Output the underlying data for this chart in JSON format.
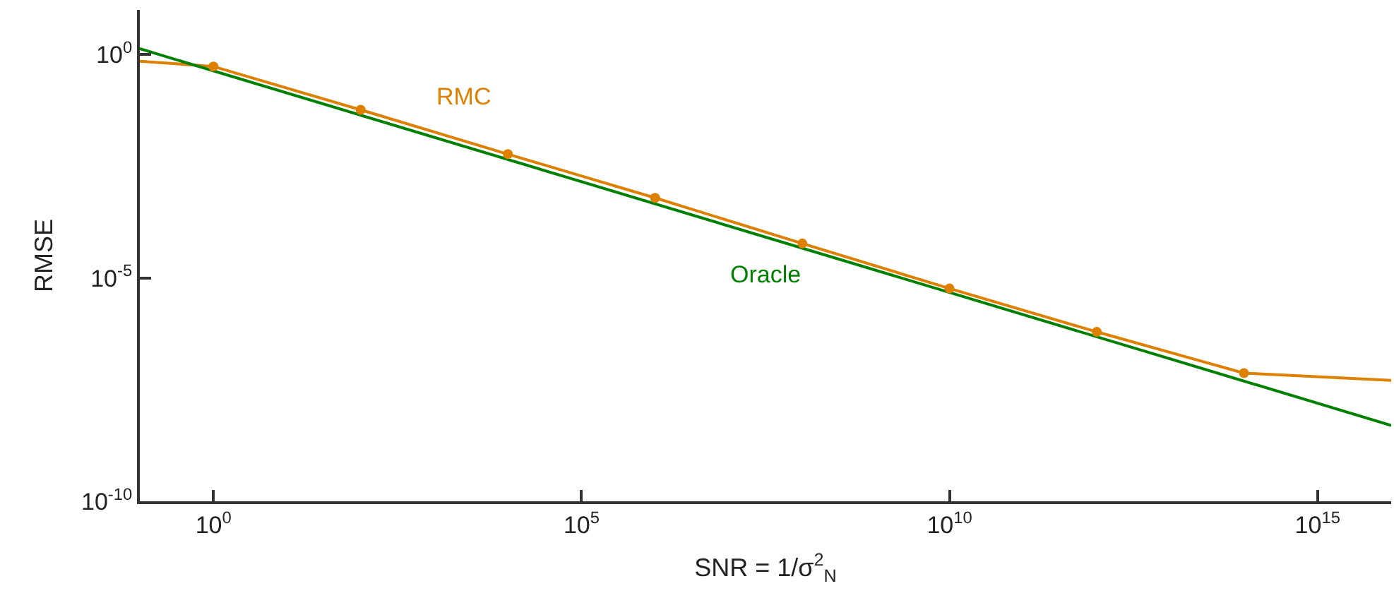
{
  "chart_data": {
    "type": "line",
    "xlabel": "SNR = 1/σ$^{2}$$_{N}$",
    "ylabel": "RMSE",
    "log": "xy",
    "grid": false,
    "legend": false,
    "xlim": [
      0.1,
      1e+16
    ],
    "ylim": [
      1e-10,
      10
    ],
    "xticks": [
      {
        "value": 1,
        "label": "10$^{0}$"
      },
      {
        "value": 100000,
        "label": "10$^{5}$"
      },
      {
        "value": 10000000000.0,
        "label": "10$^{10}$"
      },
      {
        "value": 1000000000000000.0,
        "label": "10$^{15}$"
      }
    ],
    "yticks": [
      {
        "value": 1e-10,
        "label": "10$^{-10}$"
      },
      {
        "value": 1e-05,
        "label": "10$^{-5}$"
      },
      {
        "value": 1,
        "label": "10$^{0}$"
      }
    ],
    "series": [
      {
        "name": "RMC",
        "color": "#dd8000",
        "marker": "none",
        "x": [
          0.1,
          1,
          100,
          10000,
          1000000,
          100000000,
          10000000000.0,
          1000000000000.0,
          100000000000000.0,
          1e+16
        ],
        "values": [
          0.71,
          0.54,
          0.058,
          0.0059,
          0.00062,
          5.9e-05,
          5.8e-06,
          6.2e-07,
          7.4e-08,
          5.1e-08
        ]
      },
      {
        "name": "Oracle",
        "color": "#008000",
        "marker": "none",
        "x": [
          0.1,
          1e+16
        ],
        "values": [
          1.35,
          5e-09
        ]
      },
      {
        "type": "scatter",
        "color": "#dd8000",
        "marker": "circle",
        "x": [
          1,
          100,
          10000,
          1000000,
          100000000,
          10000000000.0,
          1000000000000.0,
          100000000000000.0
        ],
        "values": [
          0.54,
          0.058,
          0.0059,
          0.00062,
          5.9e-05,
          5.8e-06,
          6.2e-07,
          7.4e-08
        ]
      }
    ]
  }
}
